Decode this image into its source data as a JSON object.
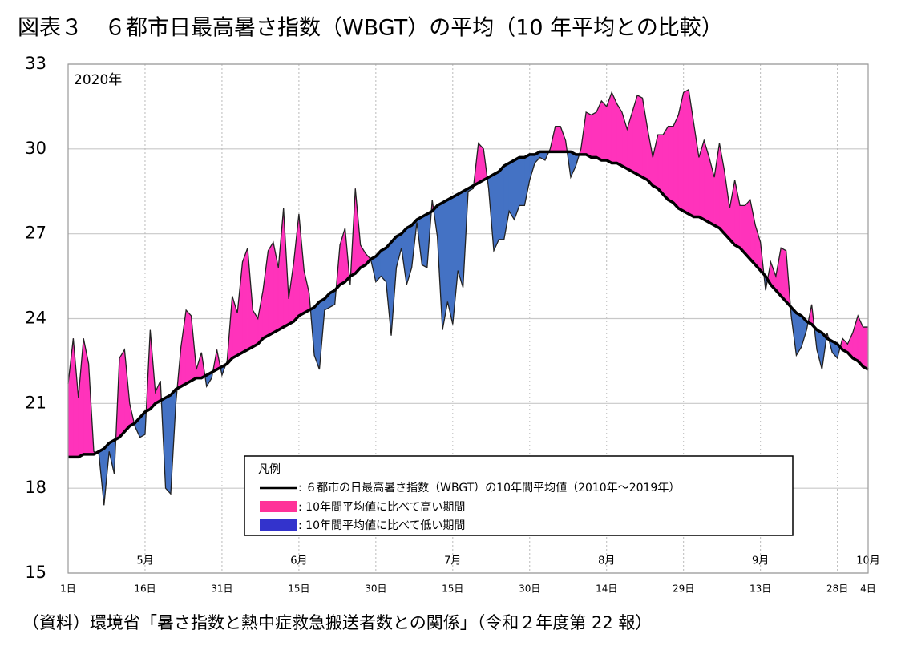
{
  "title": "図表３　６都市日最高暑さ指数（WBGT）の平均（10 年平均との比較）",
  "source": "（資料）環境省「暑さ指数と熱中症救急搬送者数との関係」（令和２年度第 22 報）",
  "chart_data": {
    "type": "deviation-area",
    "annotation": "2020年",
    "legend_title": "凡例",
    "x": [
      0,
      1,
      2,
      3,
      4,
      5,
      6,
      7,
      8,
      9,
      10,
      11,
      12,
      13,
      14,
      15,
      16,
      17,
      18,
      19,
      20,
      21,
      22,
      23,
      24,
      25,
      26,
      27,
      28,
      29,
      30,
      31,
      32,
      33,
      34,
      35,
      36,
      37,
      38,
      39,
      40,
      41,
      42,
      43,
      44,
      45,
      46,
      47,
      48,
      49,
      50,
      51,
      52,
      53,
      54,
      55,
      56,
      57,
      58,
      59,
      60,
      61,
      62,
      63,
      64,
      65,
      66,
      67,
      68,
      69,
      70,
      71,
      72,
      73,
      74,
      75,
      76,
      77,
      78,
      79,
      80,
      81,
      82,
      83,
      84,
      85,
      86,
      87,
      88,
      89,
      90,
      91,
      92,
      93,
      94,
      95,
      96,
      97,
      98,
      99,
      100,
      101,
      102,
      103,
      104,
      105,
      106,
      107,
      108,
      109,
      110,
      111,
      112,
      113,
      114,
      115,
      116,
      117,
      118,
      119,
      120,
      121,
      122,
      123,
      124,
      125,
      126,
      127,
      128,
      129,
      130,
      131,
      132,
      133,
      134,
      135,
      136,
      137,
      138,
      139,
      140,
      141,
      142,
      143,
      144,
      145,
      146,
      147,
      148,
      149,
      150,
      151,
      152,
      153,
      154,
      155,
      156
    ],
    "values": [
      21.7,
      23.3,
      21.2,
      23.3,
      22.4,
      19.3,
      19.2,
      17.4,
      19.3,
      18.5,
      22.6,
      22.9,
      21.0,
      20.2,
      19.8,
      19.9,
      23.6,
      21.4,
      21.8,
      18.0,
      17.8,
      21.0,
      23.0,
      24.3,
      24.1,
      22.2,
      22.8,
      21.6,
      21.9,
      22.9,
      22.0,
      22.5,
      24.8,
      24.2,
      26.0,
      26.5,
      24.3,
      24.0,
      25.0,
      26.4,
      26.7,
      25.8,
      27.9,
      24.7,
      26.0,
      27.7,
      25.7,
      24.9,
      22.7,
      22.2,
      24.3,
      24.4,
      24.5,
      26.6,
      27.2,
      25.2,
      28.6,
      26.6,
      26.3,
      26.1,
      25.3,
      25.5,
      25.3,
      23.4,
      25.8,
      26.5,
      25.2,
      25.8,
      27.4,
      25.9,
      25.8,
      28.2,
      26.9,
      23.6,
      24.6,
      23.8,
      25.7,
      25.1,
      28.5,
      28.6,
      30.2,
      30.0,
      28.6,
      26.4,
      26.8,
      26.8,
      27.8,
      27.5,
      28.0,
      28.0,
      28.9,
      29.5,
      29.7,
      29.6,
      30.0,
      30.8,
      30.8,
      30.3,
      29.0,
      29.4,
      30.0,
      31.3,
      31.2,
      31.3,
      31.7,
      31.5,
      32.0,
      31.6,
      31.3,
      30.7,
      31.3,
      31.9,
      31.8,
      30.7,
      29.7,
      30.5,
      30.5,
      30.8,
      30.8,
      31.2,
      32.0,
      32.1,
      30.9,
      29.7,
      30.3,
      29.7,
      29.0,
      30.2,
      29.2,
      27.9,
      28.9,
      28.0,
      28.0,
      28.2,
      27.3,
      26.7,
      25.0,
      26.0,
      25.5,
      26.5,
      26.4,
      24.1,
      22.7,
      23.0,
      23.6,
      24.5,
      22.9,
      22.2,
      23.5,
      22.8,
      22.6,
      23.3,
      23.1,
      23.5,
      24.1,
      23.7,
      23.7
    ],
    "series": [
      {
        "name": ": ６都市の日最高暑さ指数（WBGT）の10年間平均値（2010年～2019年）",
        "color": "#000000",
        "values": [
          19.1,
          19.1,
          19.1,
          19.2,
          19.2,
          19.2,
          19.3,
          19.4,
          19.6,
          19.7,
          19.8,
          20.0,
          20.2,
          20.3,
          20.5,
          20.7,
          20.8,
          21.0,
          21.1,
          21.2,
          21.3,
          21.5,
          21.6,
          21.7,
          21.8,
          21.9,
          21.9,
          22.0,
          22.1,
          22.2,
          22.3,
          22.4,
          22.6,
          22.7,
          22.8,
          22.9,
          23.0,
          23.1,
          23.3,
          23.4,
          23.5,
          23.6,
          23.7,
          23.8,
          23.9,
          24.1,
          24.2,
          24.3,
          24.4,
          24.6,
          24.7,
          24.9,
          25.0,
          25.2,
          25.3,
          25.5,
          25.6,
          25.8,
          25.9,
          26.1,
          26.2,
          26.4,
          26.5,
          26.7,
          26.9,
          27.0,
          27.2,
          27.3,
          27.5,
          27.6,
          27.7,
          27.8,
          28.0,
          28.1,
          28.2,
          28.3,
          28.4,
          28.5,
          28.6,
          28.7,
          28.8,
          28.9,
          29.0,
          29.1,
          29.2,
          29.4,
          29.5,
          29.6,
          29.7,
          29.7,
          29.8,
          29.8,
          29.9,
          29.9,
          29.9,
          29.9,
          29.9,
          29.9,
          29.9,
          29.8,
          29.8,
          29.8,
          29.7,
          29.7,
          29.6,
          29.6,
          29.5,
          29.5,
          29.4,
          29.3,
          29.2,
          29.1,
          29.0,
          28.9,
          28.7,
          28.6,
          28.4,
          28.2,
          28.1,
          27.9,
          27.8,
          27.7,
          27.6,
          27.6,
          27.5,
          27.4,
          27.3,
          27.2,
          27.0,
          26.8,
          26.6,
          26.5,
          26.3,
          26.1,
          25.9,
          25.7,
          25.5,
          25.2,
          25.0,
          24.8,
          24.6,
          24.4,
          24.2,
          24.1,
          23.9,
          23.8,
          23.6,
          23.5,
          23.3,
          23.2,
          23.1,
          22.9,
          22.8,
          22.6,
          22.5,
          22.3,
          22.2
        ]
      }
    ],
    "above": {
      "name": ": 10年間平均値に比べて高い期間",
      "color": "#ff33bb",
      "legend_color": "#ff3399"
    },
    "below": {
      "name": ": 10年間平均値に比べて低い期間",
      "color": "#4472c4",
      "legend_color": "#3333cc"
    },
    "xlim": [
      0,
      156
    ],
    "ylim": [
      15,
      33
    ],
    "yticks": [
      15,
      18,
      21,
      24,
      27,
      30,
      33
    ],
    "xticks": [
      {
        "value": 0,
        "label": "1日"
      },
      {
        "value": 15,
        "label": "16日"
      },
      {
        "value": 30,
        "label": "31日"
      },
      {
        "value": 45,
        "label": "15日"
      },
      {
        "value": 60,
        "label": "30日"
      },
      {
        "value": 75,
        "label": "15日"
      },
      {
        "value": 90,
        "label": "30日"
      },
      {
        "value": 105,
        "label": "14日"
      },
      {
        "value": 120,
        "label": "29日"
      },
      {
        "value": 135,
        "label": "13日"
      },
      {
        "value": 150,
        "label": "28日"
      },
      {
        "value": 156,
        "label": "4日"
      }
    ],
    "month_labels": [
      {
        "value": 15,
        "label": "5月"
      },
      {
        "value": 45,
        "label": "6月"
      },
      {
        "value": 75,
        "label": "7月"
      },
      {
        "value": 105,
        "label": "8月"
      },
      {
        "value": 135,
        "label": "9月"
      },
      {
        "value": 156,
        "label": "10月"
      }
    ],
    "grid": true
  }
}
